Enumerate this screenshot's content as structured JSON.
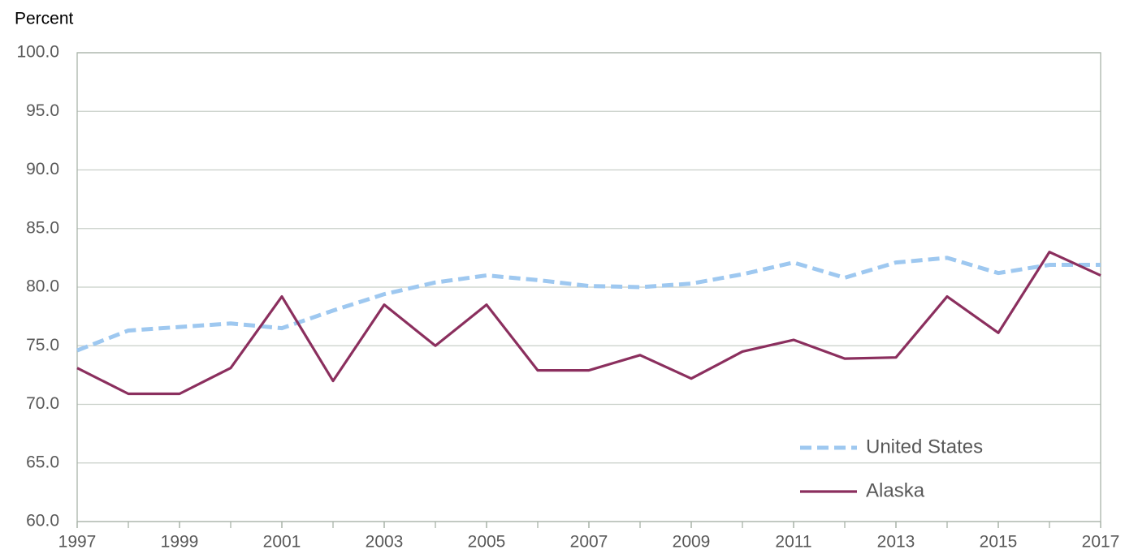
{
  "chart_data": {
    "type": "line",
    "y_label": "Percent",
    "x": [
      1997,
      1998,
      1999,
      2000,
      2001,
      2002,
      2003,
      2004,
      2005,
      2006,
      2007,
      2008,
      2009,
      2010,
      2011,
      2012,
      2013,
      2014,
      2015,
      2016,
      2017
    ],
    "series": [
      {
        "name": "United States",
        "color": "#9ec8f0",
        "dashed": true,
        "values": [
          74.6,
          76.3,
          76.6,
          76.9,
          76.5,
          78.0,
          79.4,
          80.4,
          81.0,
          80.6,
          80.1,
          80.0,
          80.3,
          81.1,
          82.1,
          80.8,
          82.1,
          82.5,
          81.2,
          81.9,
          81.9
        ]
      },
      {
        "name": "Alaska",
        "color": "#8b2f5e",
        "dashed": false,
        "values": [
          73.1,
          70.9,
          70.9,
          73.1,
          79.2,
          72.0,
          78.5,
          75.0,
          78.5,
          72.9,
          72.9,
          74.2,
          72.2,
          74.5,
          75.5,
          73.9,
          74.0,
          79.2,
          76.1,
          83.0,
          81.0
        ]
      }
    ],
    "xlim": [
      1997,
      2017
    ],
    "xticks": [
      1997,
      1999,
      2001,
      2003,
      2005,
      2007,
      2009,
      2011,
      2013,
      2015,
      2017
    ],
    "ylim": [
      60,
      100
    ],
    "yticks": [
      {
        "value": 60,
        "label": "60.0"
      },
      {
        "value": 65,
        "label": "65.0"
      },
      {
        "value": 70,
        "label": "70.0"
      },
      {
        "value": 75,
        "label": "75.0"
      },
      {
        "value": 80,
        "label": "80.0"
      },
      {
        "value": 85,
        "label": "85.0"
      },
      {
        "value": 90,
        "label": "90.0"
      },
      {
        "value": 95,
        "label": "95.0"
      },
      {
        "value": 100,
        "label": "100.0"
      }
    ],
    "grid": true,
    "legend": "lower right"
  }
}
